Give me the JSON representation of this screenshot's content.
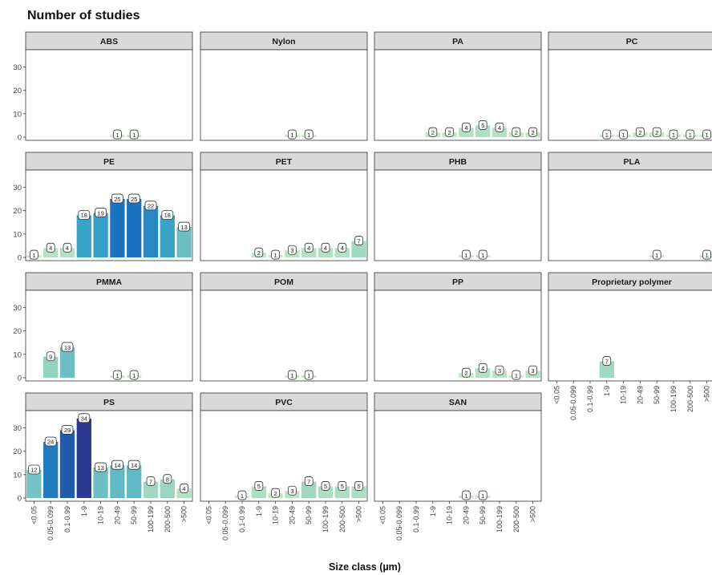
{
  "chart_data": {
    "type": "bar",
    "title": "Number of studies",
    "xlabel": "Size class (µm)",
    "ylabel": "",
    "ylim": [
      0,
      36
    ],
    "yticks": [
      0,
      10,
      20,
      30
    ],
    "grid": false,
    "legend": "none",
    "categories": [
      "<0.05",
      "0.05-0.099",
      "0.1-0.99",
      "1-9",
      "10-19",
      "20-49",
      "50-99",
      "100-199",
      "200-500",
      ">500"
    ],
    "color_scale": [
      "#c6e9c2",
      "#2b3a8f"
    ],
    "facets": [
      {
        "name": "ABS",
        "values": [
          null,
          null,
          null,
          null,
          null,
          1,
          1,
          null,
          null,
          null
        ]
      },
      {
        "name": "Nylon",
        "values": [
          null,
          null,
          null,
          null,
          null,
          1,
          1,
          null,
          null,
          null
        ]
      },
      {
        "name": "PA",
        "values": [
          null,
          null,
          null,
          2,
          2,
          4,
          5,
          4,
          2,
          2
        ]
      },
      {
        "name": "PC",
        "values": [
          null,
          null,
          null,
          1,
          1,
          2,
          2,
          1,
          1,
          1
        ]
      },
      {
        "name": "PE",
        "values": [
          1,
          4,
          4,
          18,
          19,
          25,
          25,
          22,
          18,
          13
        ]
      },
      {
        "name": "PET",
        "values": [
          null,
          null,
          null,
          2,
          1,
          3,
          4,
          4,
          4,
          7
        ]
      },
      {
        "name": "PHB",
        "values": [
          null,
          null,
          null,
          null,
          null,
          1,
          1,
          null,
          null,
          null
        ]
      },
      {
        "name": "PLA",
        "values": [
          null,
          null,
          null,
          null,
          null,
          null,
          1,
          null,
          null,
          1
        ]
      },
      {
        "name": "PMMA",
        "values": [
          null,
          9,
          13,
          null,
          null,
          1,
          1,
          null,
          null,
          null
        ]
      },
      {
        "name": "POM",
        "values": [
          null,
          null,
          null,
          null,
          null,
          1,
          1,
          null,
          null,
          null
        ]
      },
      {
        "name": "PP",
        "values": [
          null,
          null,
          null,
          null,
          null,
          2,
          4,
          3,
          1,
          3
        ]
      },
      {
        "name": "Proprietary polymer",
        "values": [
          null,
          null,
          null,
          7,
          null,
          null,
          null,
          null,
          null,
          null
        ]
      },
      {
        "name": "PS",
        "values": [
          12,
          24,
          29,
          34,
          13,
          14,
          14,
          7,
          8,
          4
        ]
      },
      {
        "name": "PVC",
        "values": [
          null,
          null,
          1,
          5,
          2,
          3,
          7,
          5,
          5,
          5
        ]
      },
      {
        "name": "SAN",
        "values": [
          null,
          null,
          null,
          null,
          null,
          1,
          1,
          null,
          null,
          null
        ]
      }
    ]
  }
}
